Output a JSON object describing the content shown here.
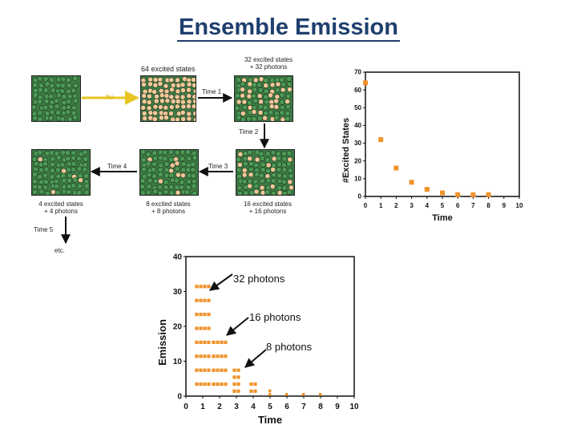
{
  "title": "Ensemble Emission",
  "labels": {
    "excited64": "64 excited states",
    "excited32": "32 excited states",
    "plus32": "+ 32 photons",
    "hv": "hν",
    "time1": "Time 1",
    "time2": "Time 2",
    "time3": "Time 3",
    "time4": "Time 4",
    "time5": "Time 5",
    "excited16": "16 excited states",
    "plus16": "+ 16 photons",
    "excited8": "8 excited states",
    "plus8": "+ 8 photons",
    "excited4": "4 excited states",
    "plus4": "+ 4 photons",
    "etc": "etc."
  },
  "annotations": {
    "photons32": "32 photons",
    "photons16": "16 photons",
    "photons8": "8 photons"
  },
  "colors": {
    "green": "#3e7a44",
    "excited": "#f4c79a",
    "orange": "#f0922b",
    "hv_arrow": "#e8c420",
    "title": "#1f3f6e"
  },
  "chart_data": [
    {
      "type": "scatter",
      "xlabel": "Time",
      "ylabel": "#Excited States",
      "x": [
        0,
        1,
        2,
        3,
        4,
        5,
        6,
        7,
        8
      ],
      "values": [
        64,
        32,
        16,
        8,
        4,
        2,
        1,
        1,
        1
      ],
      "xlim": [
        0,
        10
      ],
      "ylim": [
        0,
        70
      ],
      "xticks": [
        0,
        1,
        2,
        3,
        4,
        5,
        6,
        7,
        8,
        9,
        10
      ],
      "yticks": [
        0,
        10,
        20,
        30,
        40,
        50,
        60,
        70
      ]
    },
    {
      "type": "bar",
      "xlabel": "Time",
      "ylabel": "Emission",
      "x": [
        1,
        2,
        3,
        4,
        5,
        6,
        7,
        8
      ],
      "values": [
        32,
        16,
        8,
        4,
        2,
        1,
        1,
        1
      ],
      "xlim": [
        0,
        10
      ],
      "ylim": [
        0,
        40
      ],
      "xticks": [
        0,
        1,
        2,
        3,
        4,
        5,
        6,
        7,
        8,
        9,
        10
      ],
      "yticks": [
        0,
        10,
        20,
        30,
        40
      ]
    }
  ]
}
